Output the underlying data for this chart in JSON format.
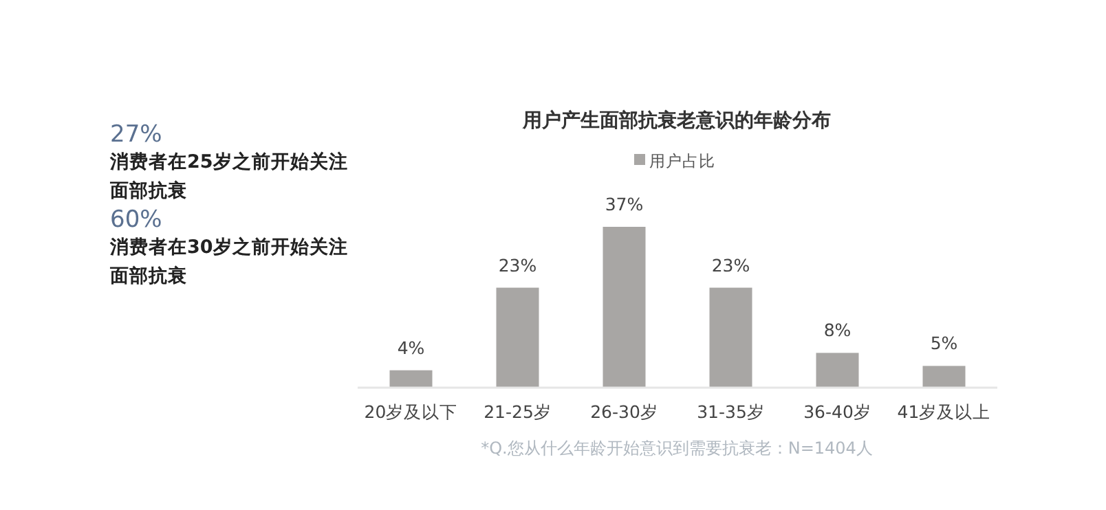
{
  "chart_data": {
    "type": "bar",
    "title": "用户产生面部抗衰老意识的年龄分布",
    "categories": [
      "20岁及以下",
      "21-25岁",
      "26-30岁",
      "31-35岁",
      "36-40岁",
      "41岁及以上"
    ],
    "series": [
      {
        "name": "用户占比",
        "color": "#a8a6a4",
        "values": [
          4,
          23,
          37,
          23,
          8,
          5
        ],
        "value_labels": [
          "4%",
          "23%",
          "37%",
          "23%",
          "8%",
          "5%"
        ]
      }
    ],
    "legend": "top",
    "annotations": [
      "27%",
      "消费者在25岁之前开始关注面部抗衰",
      "60%",
      "消费者在30岁之前开始关注面部抗衰",
      "*Q.您从什么年龄开始意识到需要抗衰老：N=1404人"
    ]
  }
}
